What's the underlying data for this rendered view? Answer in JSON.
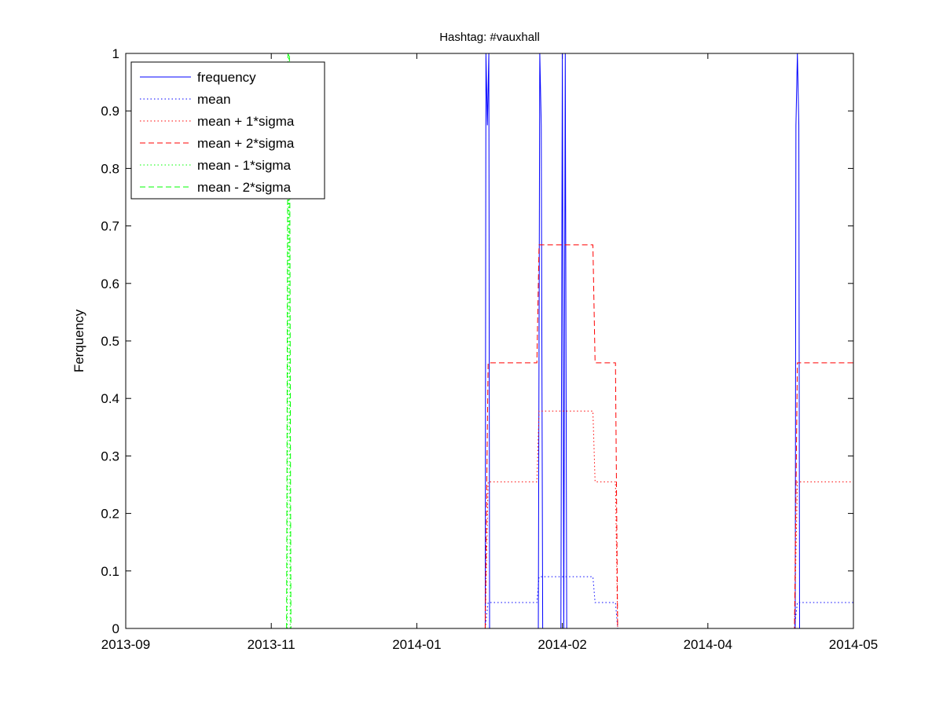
{
  "chart_data": {
    "type": "line",
    "title": "Hashtag: #vauxhall",
    "xlabel": "",
    "ylabel": "Ferquency",
    "ylim": [
      0,
      1
    ],
    "yticks": [
      0,
      0.1,
      0.2,
      0.3,
      0.4,
      0.5,
      0.6,
      0.7,
      0.8,
      0.9,
      1
    ],
    "ytick_labels": [
      "0",
      "0.1",
      "0.2",
      "0.3",
      "0.4",
      "0.5",
      "0.6",
      "0.7",
      "0.8",
      "0.9",
      "1"
    ],
    "xtick_labels": [
      "2013-09",
      "2013-11",
      "2014-01",
      "2014-02",
      "2014-04",
      "2014-05"
    ],
    "xlim": [
      0,
      100
    ],
    "grid": false,
    "legend_position": "top-left",
    "series": [
      {
        "name": "frequency",
        "color": "#0000ff",
        "style": "solid",
        "x": [
          0,
          49.4,
          49.5,
          49.7,
          49.9,
          50.0,
          56.7,
          56.9,
          57.1,
          57.3,
          59.8,
          60.0,
          60.2,
          60.4,
          60.6,
          92.0,
          92.1,
          92.3,
          92.5,
          92.6,
          100
        ],
        "y": [
          0,
          0,
          1,
          0.875,
          1,
          0,
          0,
          1,
          0.875,
          0,
          0,
          1,
          0,
          1,
          0,
          0,
          0.875,
          1,
          0.875,
          0,
          0
        ]
      },
      {
        "name": "mean",
        "color": "#0000ff",
        "style": "dotted",
        "x": [
          49.4,
          49.8,
          56.5,
          56.8,
          64.2,
          64.5,
          67.3,
          67.6,
          91.9,
          92.3,
          101.5,
          101.7
        ],
        "y": [
          0,
          0.045,
          0.045,
          0.09,
          0.09,
          0.045,
          0.045,
          0,
          0,
          0.045,
          0.045,
          0
        ]
      },
      {
        "name": "mean + 1*sigma",
        "color": "#ff0000",
        "style": "dotted",
        "x": [
          49.4,
          49.8,
          56.5,
          56.8,
          64.2,
          64.5,
          67.3,
          67.6,
          91.9,
          92.3,
          101.5,
          101.7
        ],
        "y": [
          0,
          0.255,
          0.255,
          0.378,
          0.378,
          0.255,
          0.255,
          0,
          0,
          0.255,
          0.255,
          0
        ]
      },
      {
        "name": "mean + 2*sigma",
        "color": "#ff0000",
        "style": "dashed",
        "x": [
          49.4,
          49.8,
          56.5,
          56.8,
          64.2,
          64.5,
          67.3,
          67.6,
          91.9,
          92.3,
          101.5,
          101.7
        ],
        "y": [
          0,
          0.462,
          0.462,
          0.667,
          0.667,
          0.462,
          0.462,
          0,
          0,
          0.462,
          0.462,
          0
        ]
      },
      {
        "name": "mean - 1*sigma",
        "color": "#00ff00",
        "style": "dotted",
        "x": [
          22.2,
          22.4,
          22.6
        ],
        "y": [
          0,
          1,
          0
        ]
      },
      {
        "name": "mean - 2*sigma",
        "color": "#00ff00",
        "style": "dashed",
        "x": [
          22.1,
          22.3,
          22.5,
          22.7
        ],
        "y": [
          0,
          1,
          1,
          0
        ]
      }
    ]
  }
}
